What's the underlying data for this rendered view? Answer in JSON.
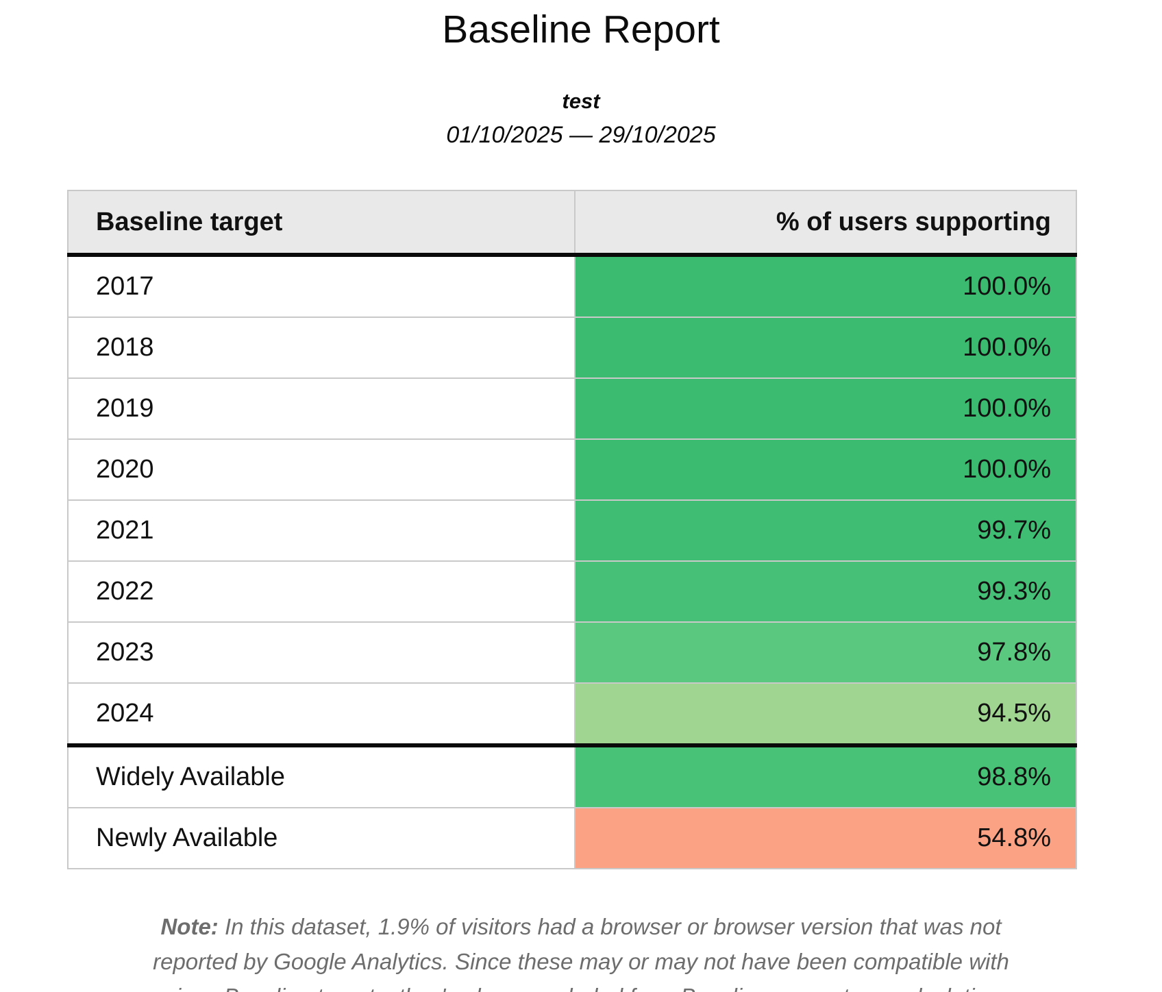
{
  "header": {
    "title": "Baseline Report",
    "subtitle": "test",
    "date_range": "01/10/2025 — 29/10/2025"
  },
  "table": {
    "columns": [
      "Baseline target",
      "% of users supporting"
    ],
    "rows": [
      {
        "target": "2017",
        "percent": "100.0%",
        "color": "#3abb70",
        "group": "year"
      },
      {
        "target": "2018",
        "percent": "100.0%",
        "color": "#3abb70",
        "group": "year"
      },
      {
        "target": "2019",
        "percent": "100.0%",
        "color": "#3abb70",
        "group": "year"
      },
      {
        "target": "2020",
        "percent": "100.0%",
        "color": "#3abb70",
        "group": "year"
      },
      {
        "target": "2021",
        "percent": "99.7%",
        "color": "#3ebd73",
        "group": "year"
      },
      {
        "target": "2022",
        "percent": "99.3%",
        "color": "#45c076",
        "group": "year"
      },
      {
        "target": "2023",
        "percent": "97.8%",
        "color": "#5ac87f",
        "group": "year"
      },
      {
        "target": "2024",
        "percent": "94.5%",
        "color": "#a0d591",
        "group": "year"
      },
      {
        "target": "Widely Available",
        "percent": "98.8%",
        "color": "#47c277",
        "group": "baseline"
      },
      {
        "target": "Newly Available",
        "percent": "54.8%",
        "color": "#fba184",
        "group": "baseline"
      }
    ]
  },
  "note": {
    "label": "Note:",
    "text": "In this dataset, 1.9% of visitors had a browser or browser version that was not reported by Google Analytics. Since these may or may not have been compatible with various Baseline targets, they've been excluded from Baseline percentage calculations."
  },
  "chart_data": {
    "type": "table",
    "title": "Baseline Report",
    "subtitle": "test",
    "date_range": "01/10/2025 — 29/10/2025",
    "columns": [
      "Baseline target",
      "% of users supporting"
    ],
    "categories": [
      "2017",
      "2018",
      "2019",
      "2020",
      "2021",
      "2022",
      "2023",
      "2024",
      "Widely Available",
      "Newly Available"
    ],
    "values": [
      100.0,
      100.0,
      100.0,
      100.0,
      99.7,
      99.3,
      97.8,
      94.5,
      98.8,
      54.8
    ],
    "colors": {
      "high": "#3abb70",
      "mid": "#a0d591",
      "low": "#fba184",
      "header_bg": "#e9e9e9",
      "grid": "#c9c9c9"
    }
  }
}
